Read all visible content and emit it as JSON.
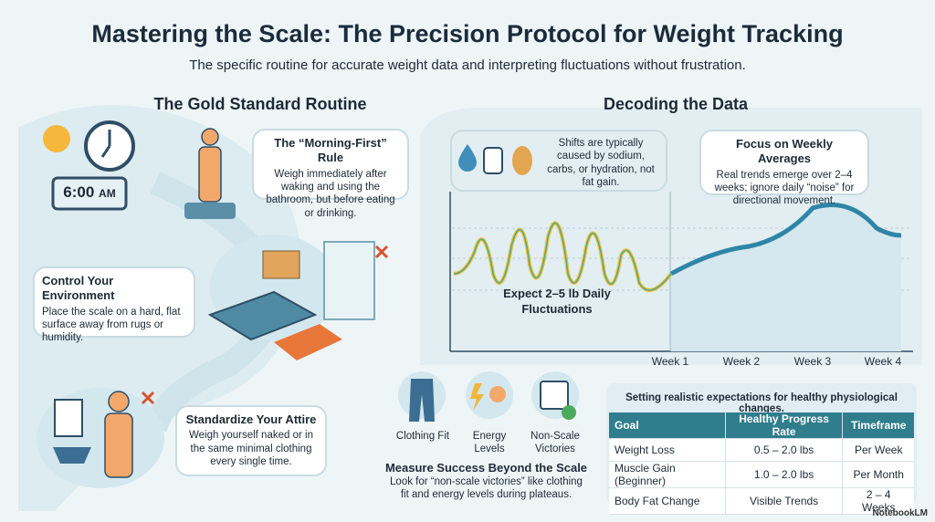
{
  "header": {
    "title": "Mastering the Scale: The Precision Protocol for Weight Tracking",
    "subtitle": "The specific routine for accurate weight data and interpreting fluctuations without frustration."
  },
  "routine": {
    "title": "The Gold Standard Routine",
    "clock_time": "6:00",
    "clock_suffix": "AM",
    "steps": [
      {
        "title": "The “Morning-First” Rule",
        "text": "Weigh immediately after waking and using the bathroom, but before eating or drinking."
      },
      {
        "title": "Control Your Environment",
        "text": "Place the scale on a hard, flat surface away from rugs or humidity."
      },
      {
        "title": "Standardize Your Attire",
        "text": "Weigh yourself naked or in the same minimal clothing every single time."
      }
    ]
  },
  "decoding": {
    "title": "Decoding the Data",
    "causes_note": "Shifts are typically caused by sodium, carbs, or hydration, not fat gain.",
    "focus": {
      "title": "Focus on Weekly Averages",
      "text": "Real trends emerge over 2–4 weeks; ignore daily “noise” for directional movement."
    },
    "fluctuation_label": "Expect 2–5 lb Daily Fluctuations",
    "weeks": [
      "Week 1",
      "Week 2",
      "Week 3",
      "Week 4"
    ]
  },
  "beyond": {
    "items": [
      "Clothing Fit",
      "Energy Levels",
      "Non-Scale Victories"
    ],
    "title": "Measure Success Beyond the Scale",
    "text": "Look for “non-scale victories” like clothing fit and energy levels during plateaus."
  },
  "table": {
    "caption": "Setting realistic expectations for healthy physiological changes.",
    "columns": [
      "Goal",
      "Healthy Progress Rate",
      "Timeframe"
    ],
    "rows": [
      [
        "Weight Loss",
        "0.5 – 2.0 lbs",
        "Per Week"
      ],
      [
        "Muscle Gain (Beginner)",
        "1.0 – 2.0 lbs",
        "Per Month"
      ],
      [
        "Body Fat Change",
        "Visible Trends",
        "2 – 4 Weeks"
      ]
    ]
  },
  "footer": {
    "brand": "NotebookLM"
  }
}
